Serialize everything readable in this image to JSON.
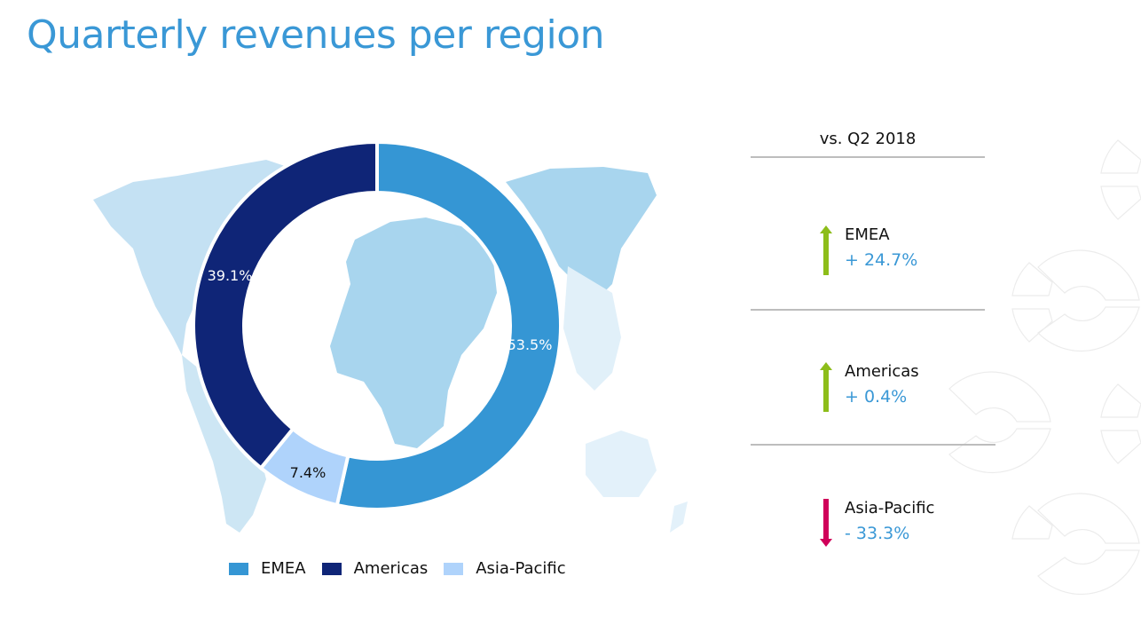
{
  "page": {
    "title": "Quarterly revenues per region"
  },
  "comparison": {
    "header": "vs. Q2 2018",
    "items": [
      {
        "region": "EMEA",
        "change": "+ 24.7%",
        "direction": "up",
        "arrow_color": "#8dbd1a"
      },
      {
        "region": "Americas",
        "change": "+ 0.4%",
        "direction": "up",
        "arrow_color": "#8dbd1a"
      },
      {
        "region": "Asia-Pacific",
        "change": "- 33.3%",
        "direction": "down",
        "arrow_color": "#d0005a"
      }
    ]
  },
  "chart_data": {
    "type": "pie",
    "variant": "donut",
    "title": "Quarterly revenues per region",
    "categories": [
      "EMEA",
      "Asia-Pacific",
      "Americas"
    ],
    "values": [
      53.5,
      7.4,
      39.1
    ],
    "data_labels": [
      "53.5%",
      "7.4%",
      "39.1%"
    ],
    "colors": [
      "#3596d4",
      "#afd3fb",
      "#0f2577"
    ],
    "label_colors": [
      "#ffffff",
      "#111111",
      "#ffffff"
    ],
    "legend": {
      "placement": "bottom",
      "entries": [
        {
          "label": "EMEA",
          "color": "#3596d4"
        },
        {
          "label": "Americas",
          "color": "#0f2577"
        },
        {
          "label": "Asia-Pacific",
          "color": "#afd3fb"
        }
      ]
    }
  }
}
